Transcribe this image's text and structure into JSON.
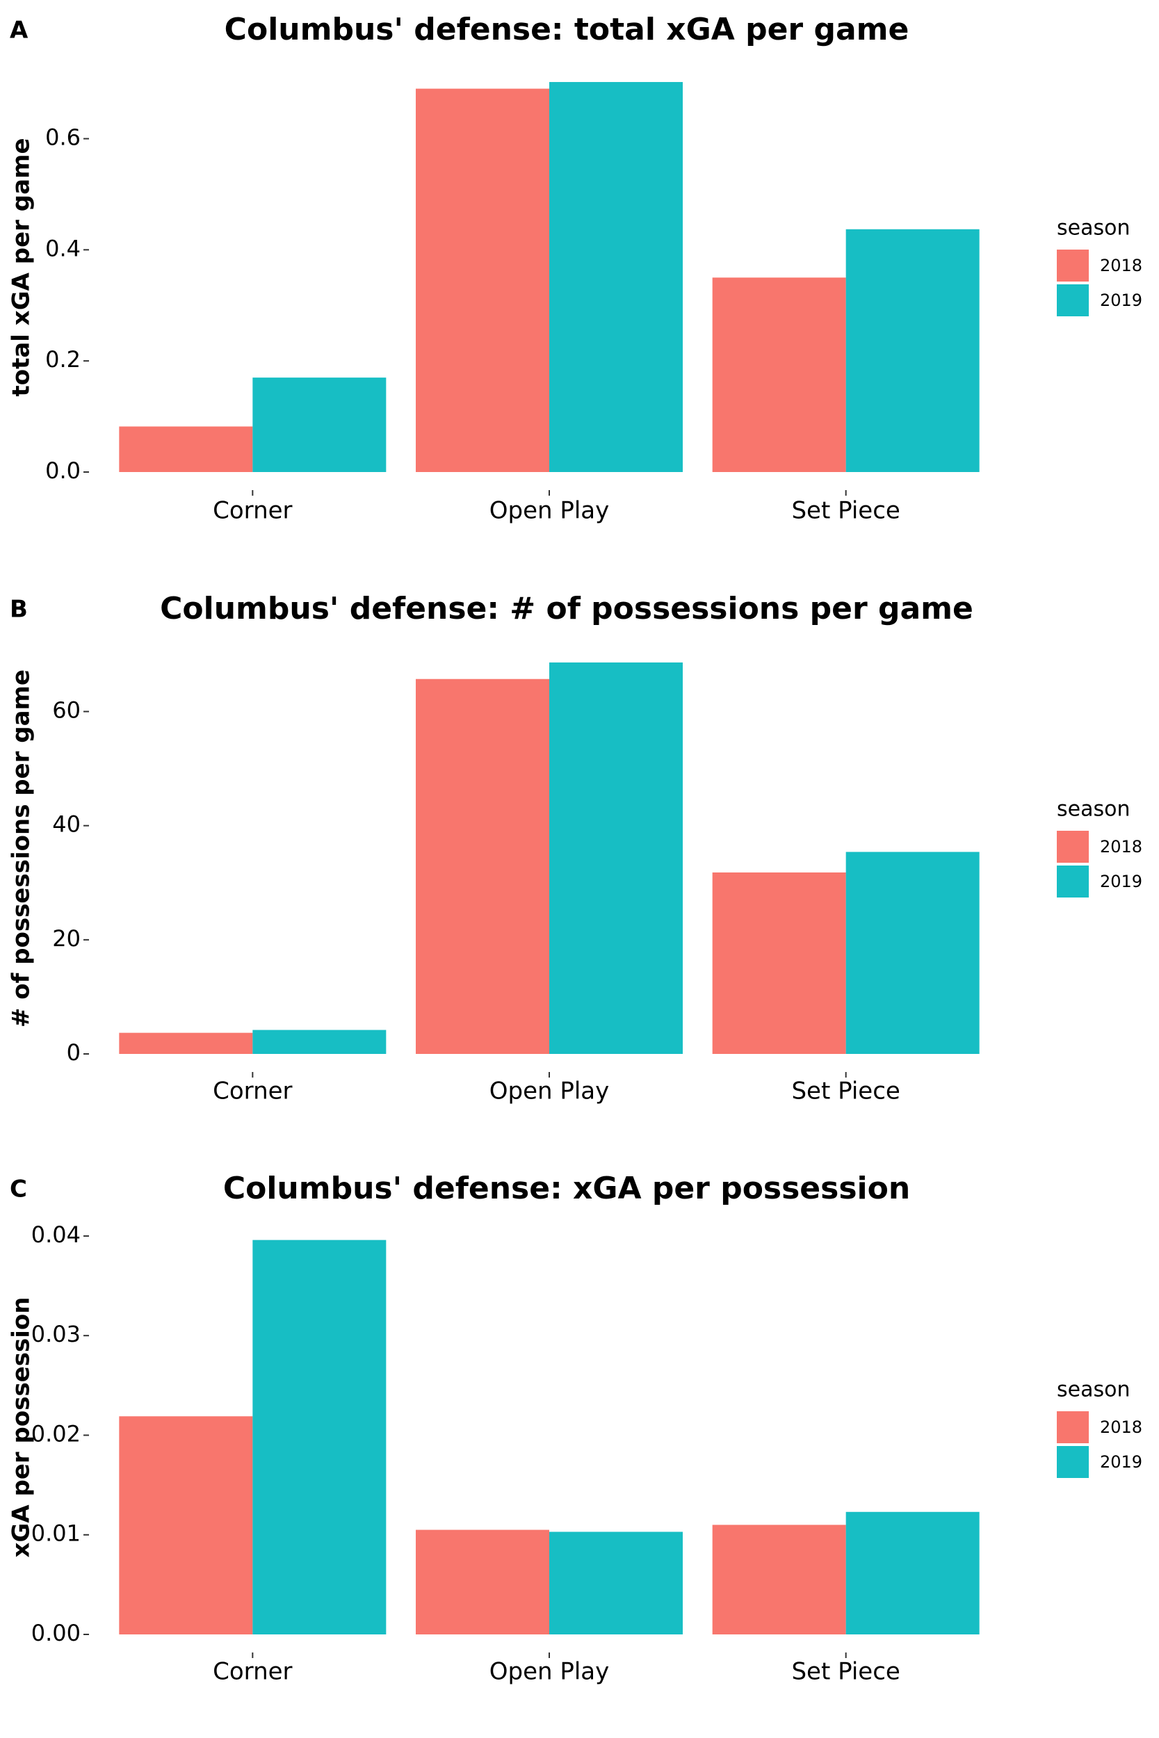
{
  "colors": {
    "2018": "#F8766D",
    "2019": "#17BEC4",
    "text": "#000000",
    "tick": "#333333"
  },
  "chart_data": [
    {
      "panel_letter": "A",
      "type": "bar",
      "title": "Columbus' defense: total xGA per game",
      "xlabel": "",
      "ylabel": "total xGA per game",
      "categories": [
        "Corner",
        "Open Play",
        "Set Piece"
      ],
      "series": [
        {
          "name": "2018",
          "values": [
            0.082,
            0.69,
            0.35
          ]
        },
        {
          "name": "2019",
          "values": [
            0.17,
            0.702,
            0.437
          ]
        }
      ],
      "yticks": [
        0.0,
        0.2,
        0.4,
        0.6
      ],
      "ytick_labels": [
        "0.0",
        "0.2",
        "0.4",
        "0.6"
      ],
      "ylim": [
        0,
        0.737
      ],
      "grid": false,
      "legend_title": "season",
      "legend_position": "right"
    },
    {
      "panel_letter": "B",
      "type": "bar",
      "title": "Columbus' defense: # of possessions per game",
      "xlabel": "",
      "ylabel": "# of possessions per game",
      "categories": [
        "Corner",
        "Open Play",
        "Set Piece"
      ],
      "series": [
        {
          "name": "2018",
          "values": [
            3.7,
            65.7,
            31.8
          ]
        },
        {
          "name": "2019",
          "values": [
            4.2,
            68.6,
            35.4
          ]
        }
      ],
      "yticks": [
        0,
        20,
        40,
        60
      ],
      "ytick_labels": [
        "0",
        "20",
        "40",
        "60"
      ],
      "ylim": [
        0,
        72
      ],
      "grid": false,
      "legend_title": "season",
      "legend_position": "right"
    },
    {
      "panel_letter": "C",
      "type": "bar",
      "title": "Columbus' defense: xGA per possession",
      "xlabel": "",
      "ylabel": "xGA per possession",
      "categories": [
        "Corner",
        "Open Play",
        "Set Piece"
      ],
      "series": [
        {
          "name": "2018",
          "values": [
            0.0219,
            0.0105,
            0.011
          ]
        },
        {
          "name": "2019",
          "values": [
            0.0396,
            0.0103,
            0.0123
          ]
        }
      ],
      "yticks": [
        0.0,
        0.01,
        0.02,
        0.03,
        0.04
      ],
      "ytick_labels": [
        "0.00",
        "0.01",
        "0.02",
        "0.03",
        "0.04"
      ],
      "ylim": [
        0,
        0.0416
      ],
      "grid": false,
      "legend_title": "season",
      "legend_position": "right"
    }
  ]
}
